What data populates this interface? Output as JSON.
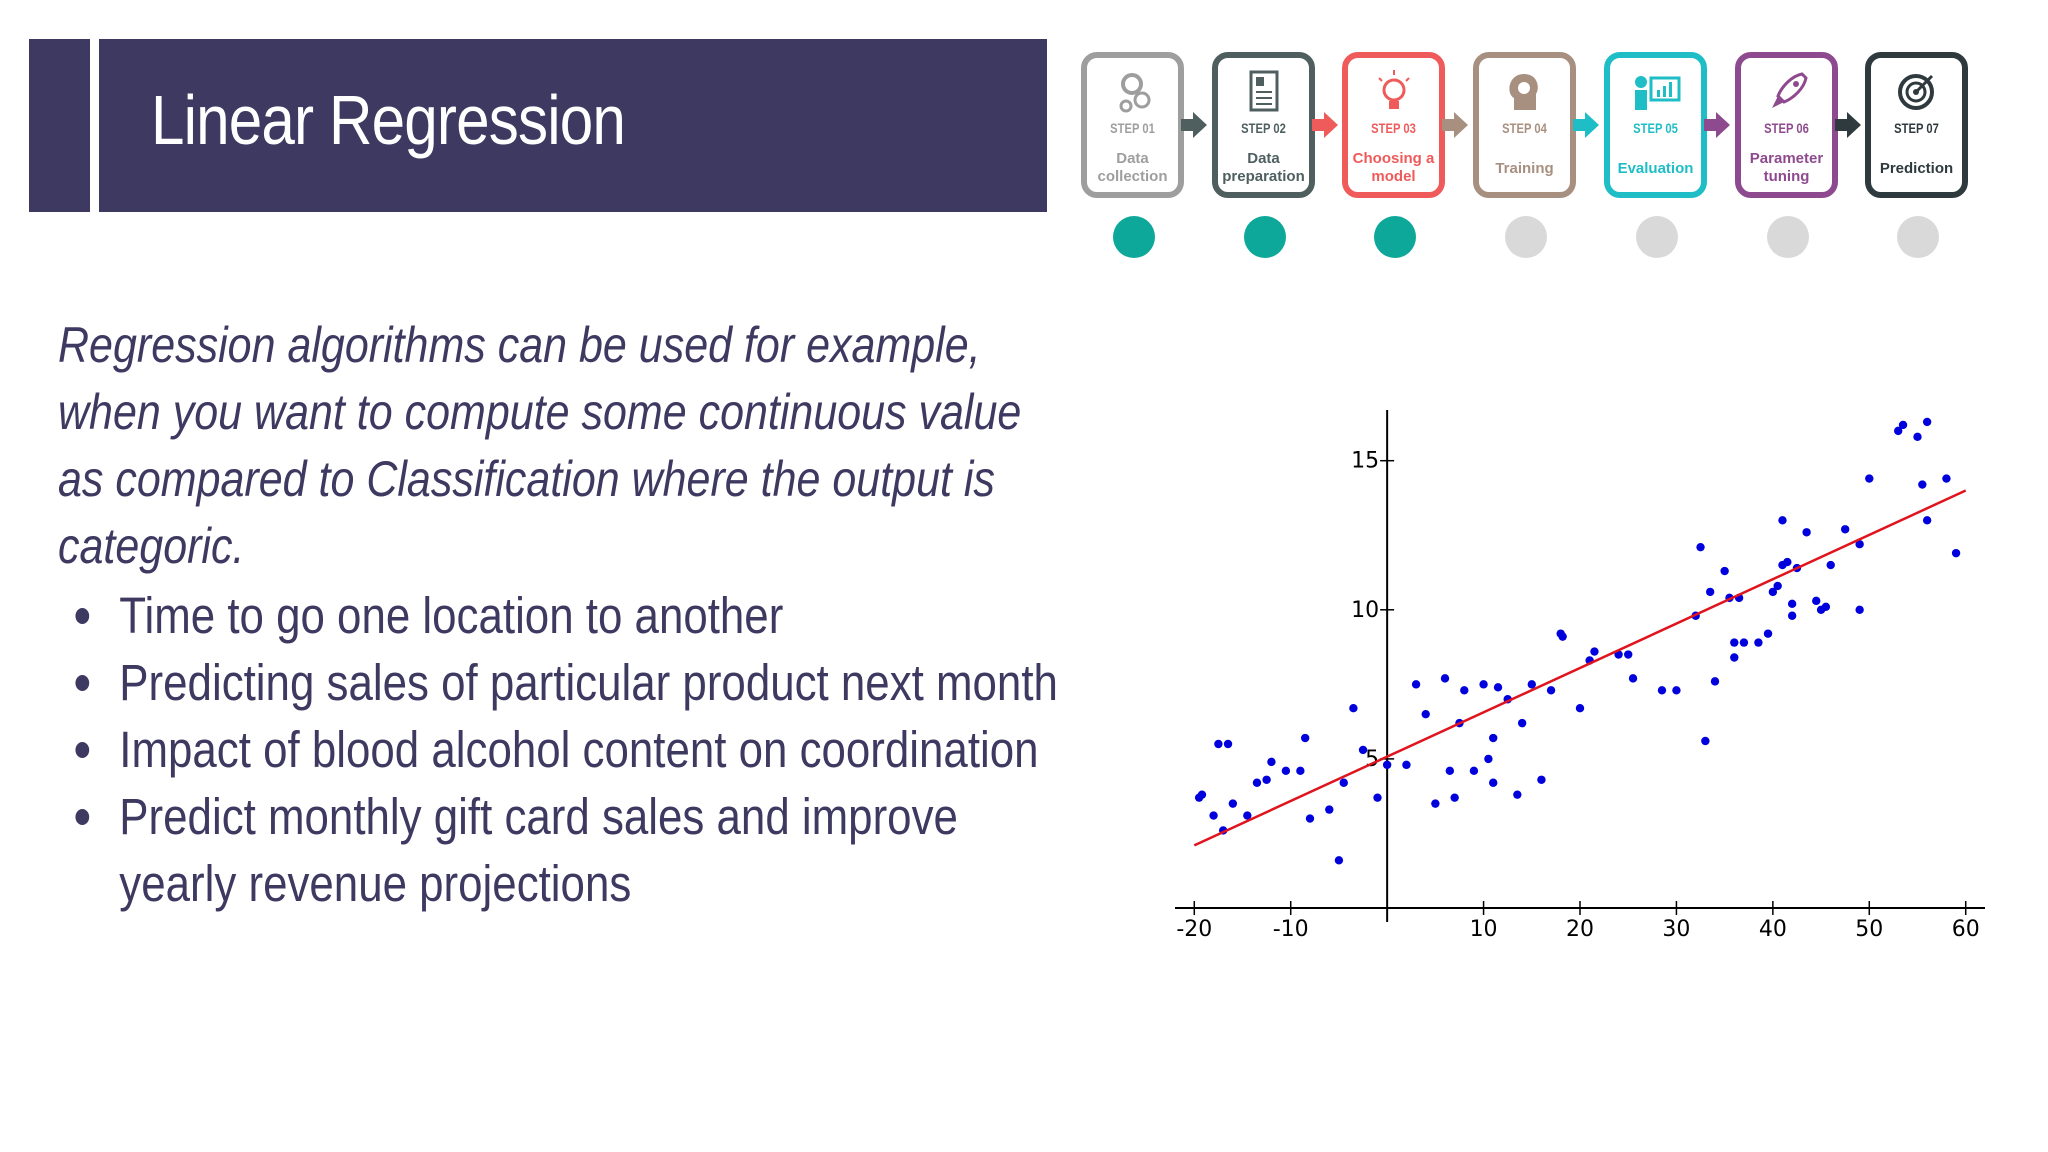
{
  "title": "Linear Regression",
  "intro": "Regression algorithms can be used for example, when you want to compute some continuous value as compared to Classification where the output is categoric.",
  "bullets": [
    "Time to go one location to another",
    "Predicting sales of particular product next month",
    "Impact of blood alcohol content on coordination",
    "Predict monthly gift card sales and improve yearly revenue projections"
  ],
  "steps": [
    {
      "num": "STEP 01",
      "name_lines": [
        "Data",
        "collection"
      ],
      "color": "#9e9e9e",
      "icon": "gears-icon",
      "done": true
    },
    {
      "num": "STEP 02",
      "name_lines": [
        "Data",
        "preparation"
      ],
      "color": "#4f5f5f",
      "icon": "document-icon",
      "done": true
    },
    {
      "num": "STEP 03",
      "name_lines": [
        "Choosing a",
        "model"
      ],
      "color": "#ef5b5b",
      "icon": "lightbulb-icon",
      "done": true
    },
    {
      "num": "STEP 04",
      "name_lines": [
        "Training"
      ],
      "color": "#a89080",
      "icon": "head-gears-icon",
      "done": false
    },
    {
      "num": "STEP 05",
      "name_lines": [
        "Evaluation"
      ],
      "color": "#1fbec6",
      "icon": "presentation-chart-icon",
      "done": false
    },
    {
      "num": "STEP 06",
      "name_lines": [
        "Parameter",
        "tuning"
      ],
      "color": "#8e4a8e",
      "icon": "rocket-icon",
      "done": false
    },
    {
      "num": "STEP 07",
      "name_lines": [
        "Prediction"
      ],
      "color": "#2f3a3e",
      "icon": "target-icon",
      "done": false
    }
  ],
  "progress_colors": {
    "done": "#0ea89b",
    "pending": "#d9d9d9"
  },
  "chart_data": {
    "type": "scatter",
    "x_ticks": [
      -20,
      -10,
      10,
      20,
      30,
      40,
      50,
      60
    ],
    "y_ticks": [
      5,
      10,
      15
    ],
    "xlim": [
      -22,
      62
    ],
    "ylim": [
      0,
      16.7
    ],
    "points_color": "#0000dd",
    "line_color": "#e0141e",
    "regression_line": {
      "x": [
        -20,
        60
      ],
      "y": [
        2.1,
        14.0
      ]
    },
    "points": [
      [
        -19.5,
        3.7
      ],
      [
        -19.2,
        3.8
      ],
      [
        -17.5,
        5.5
      ],
      [
        -16.5,
        5.5
      ],
      [
        -18,
        3.1
      ],
      [
        -17,
        2.6
      ],
      [
        -16,
        3.5
      ],
      [
        -14.5,
        3.1
      ],
      [
        -13.5,
        4.2
      ],
      [
        -12.5,
        4.3
      ],
      [
        -12,
        4.9
      ],
      [
        -10.5,
        4.6
      ],
      [
        -8.5,
        5.7
      ],
      [
        -8,
        3.0
      ],
      [
        -9,
        4.6
      ],
      [
        -6,
        3.3
      ],
      [
        -5,
        1.6
      ],
      [
        -4.5,
        4.2
      ],
      [
        -3.5,
        6.7
      ],
      [
        -2.5,
        5.3
      ],
      [
        -1,
        3.7
      ],
      [
        0,
        4.8
      ],
      [
        2,
        4.8
      ],
      [
        3,
        7.5
      ],
      [
        4,
        6.5
      ],
      [
        5,
        3.5
      ],
      [
        6,
        7.7
      ],
      [
        6.5,
        4.6
      ],
      [
        7,
        3.7
      ],
      [
        7.5,
        6.2
      ],
      [
        8,
        7.3
      ],
      [
        9,
        4.6
      ],
      [
        10,
        7.5
      ],
      [
        10.5,
        5.0
      ],
      [
        11,
        5.7
      ],
      [
        11,
        4.2
      ],
      [
        11.5,
        7.4
      ],
      [
        12.5,
        7.0
      ],
      [
        13.5,
        3.8
      ],
      [
        14,
        6.2
      ],
      [
        15,
        7.5
      ],
      [
        16,
        4.3
      ],
      [
        17,
        7.3
      ],
      [
        18,
        9.2
      ],
      [
        18.2,
        9.1
      ],
      [
        20,
        6.7
      ],
      [
        21,
        8.3
      ],
      [
        21.5,
        8.6
      ],
      [
        24,
        8.5
      ],
      [
        25,
        8.5
      ],
      [
        25.5,
        7.7
      ],
      [
        28.5,
        7.3
      ],
      [
        30,
        7.3
      ],
      [
        32,
        9.8
      ],
      [
        32.5,
        12.1
      ],
      [
        33,
        5.6
      ],
      [
        33.5,
        10.6
      ],
      [
        34,
        7.6
      ],
      [
        35,
        11.3
      ],
      [
        35.5,
        10.4
      ],
      [
        36,
        8.4
      ],
      [
        36,
        8.9
      ],
      [
        36.5,
        10.4
      ],
      [
        37,
        8.9
      ],
      [
        38.5,
        8.9
      ],
      [
        39.5,
        9.2
      ],
      [
        40,
        10.6
      ],
      [
        40.5,
        10.8
      ],
      [
        41,
        13.0
      ],
      [
        41,
        11.5
      ],
      [
        41.5,
        11.6
      ],
      [
        42,
        10.2
      ],
      [
        42,
        9.8
      ],
      [
        42.5,
        11.4
      ],
      [
        43.5,
        12.6
      ],
      [
        44.5,
        10.3
      ],
      [
        45,
        10.0
      ],
      [
        45.5,
        10.1
      ],
      [
        46,
        11.5
      ],
      [
        47.5,
        12.7
      ],
      [
        49,
        12.2
      ],
      [
        49,
        10.0
      ],
      [
        50,
        14.4
      ],
      [
        53,
        16.0
      ],
      [
        53.5,
        16.2
      ],
      [
        55,
        15.8
      ],
      [
        55.5,
        14.2
      ],
      [
        56,
        16.3
      ],
      [
        56,
        13.0
      ],
      [
        58,
        14.4
      ],
      [
        59,
        11.9
      ]
    ]
  }
}
